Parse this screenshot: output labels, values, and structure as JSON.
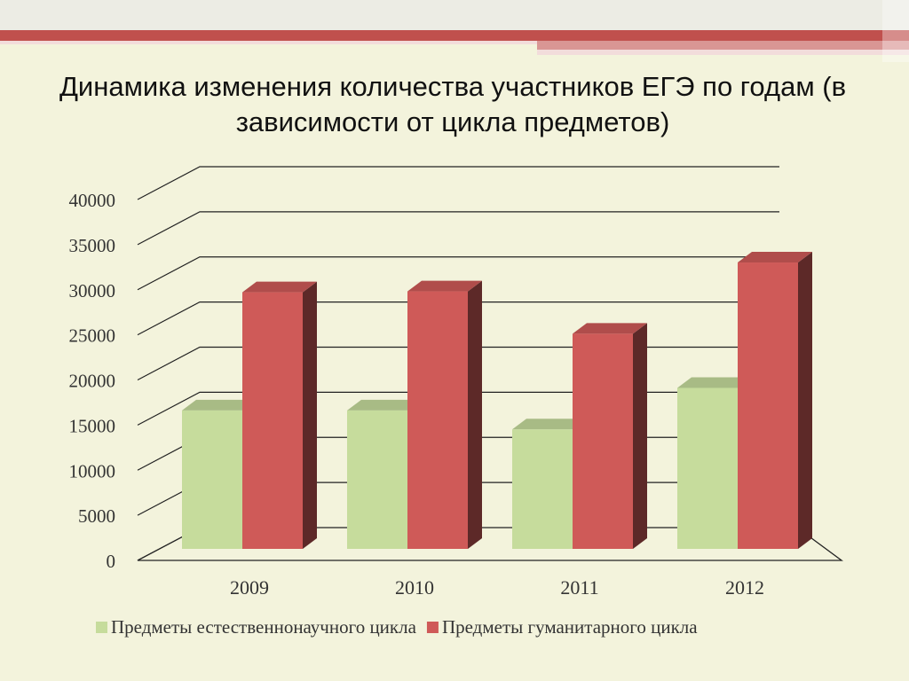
{
  "slide": {
    "title": "Динамика изменения количества участников ЕГЭ по годам (в зависимости от цикла предметов)"
  },
  "colors": {
    "background": "#f3f3dc",
    "accent_red": "#c0504d",
    "natural_series": "#c6dc9c",
    "humanitarian_series": "#cf5a58"
  },
  "chart_data": {
    "type": "bar",
    "title": "",
    "xlabel": "",
    "ylabel": "",
    "categories": [
      "2009",
      "2010",
      "2011",
      "2012"
    ],
    "series": [
      {
        "name": "Предметы естественнонаучного цикла",
        "values": [
          17800,
          17800,
          15700,
          20300
        ],
        "color": "#c6dc9c"
      },
      {
        "name": "Предметы гуманитарного цикла",
        "values": [
          30900,
          31000,
          26300,
          34200
        ],
        "color": "#cf5a58"
      }
    ],
    "ylim": [
      0,
      40000
    ],
    "yticks": [
      "0",
      "5000",
      "10000",
      "15000",
      "20000",
      "25000",
      "30000",
      "35000",
      "40000"
    ],
    "grid": true,
    "legend_position": "bottom",
    "style": "3d-clustered-column"
  }
}
